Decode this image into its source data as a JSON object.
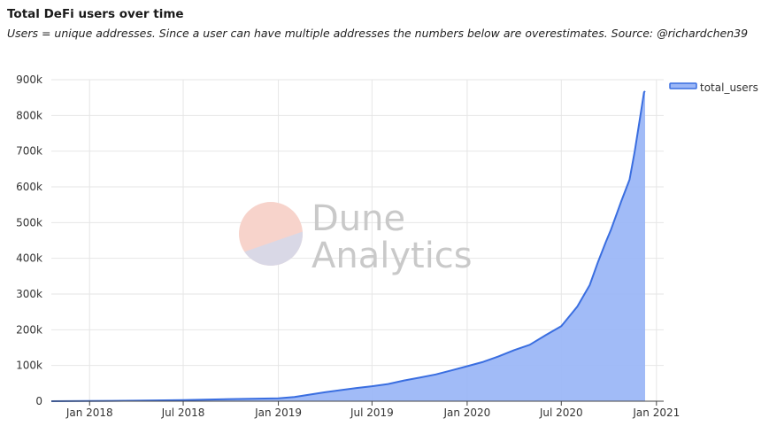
{
  "header": {
    "title": "Total DeFi users over time",
    "subtitle": "Users = unique addresses. Since a user can have multiple addresses the numbers below are overestimates. Source: @richardchen39"
  },
  "watermark": {
    "line1": "Dune",
    "line2": "Analytics"
  },
  "colors": {
    "line": "#3a6ee0",
    "fill": "#9cb7f7",
    "grid": "#e6e6e6",
    "watermark_top": "#f7d3cb",
    "watermark_bottom": "#d9d8e6"
  },
  "chart_data": {
    "type": "area",
    "title": "",
    "xlabel": "",
    "ylabel": "",
    "grid": true,
    "legend_position": "top-right",
    "xlim": [
      "2017-10-19",
      "2021-01-15"
    ],
    "ylim": [
      0,
      900000
    ],
    "y_ticks": [
      {
        "value": 0,
        "label": "0"
      },
      {
        "value": 100000,
        "label": "100k"
      },
      {
        "value": 200000,
        "label": "200k"
      },
      {
        "value": 300000,
        "label": "300k"
      },
      {
        "value": 400000,
        "label": "400k"
      },
      {
        "value": 500000,
        "label": "500k"
      },
      {
        "value": 600000,
        "label": "600k"
      },
      {
        "value": 700000,
        "label": "700k"
      },
      {
        "value": 800000,
        "label": "800k"
      },
      {
        "value": 900000,
        "label": "900k"
      }
    ],
    "x_ticks": [
      {
        "value": "2018-01-01",
        "label": "Jan 2018"
      },
      {
        "value": "2018-07-01",
        "label": "Jul 2018"
      },
      {
        "value": "2019-01-01",
        "label": "Jan 2019"
      },
      {
        "value": "2019-07-01",
        "label": "Jul 2019"
      },
      {
        "value": "2020-01-01",
        "label": "Jan 2020"
      },
      {
        "value": "2020-07-01",
        "label": "Jul 2020"
      },
      {
        "value": "2021-01-01",
        "label": "Jan 2021"
      }
    ],
    "series": [
      {
        "name": "total_users",
        "points": [
          [
            "2017-10-19",
            0
          ],
          [
            "2018-01-01",
            500
          ],
          [
            "2018-04-01",
            1500
          ],
          [
            "2018-07-01",
            3000
          ],
          [
            "2018-10-01",
            6000
          ],
          [
            "2019-01-01",
            8000
          ],
          [
            "2019-02-01",
            12000
          ],
          [
            "2019-04-01",
            25000
          ],
          [
            "2019-06-01",
            37000
          ],
          [
            "2019-07-01",
            42000
          ],
          [
            "2019-08-01",
            48000
          ],
          [
            "2019-09-01",
            58000
          ],
          [
            "2019-10-01",
            66000
          ],
          [
            "2019-11-01",
            75000
          ],
          [
            "2019-12-01",
            86000
          ],
          [
            "2020-01-01",
            98000
          ],
          [
            "2020-02-01",
            110000
          ],
          [
            "2020-03-01",
            125000
          ],
          [
            "2020-04-01",
            143000
          ],
          [
            "2020-05-01",
            158000
          ],
          [
            "2020-06-01",
            185000
          ],
          [
            "2020-07-01",
            210000
          ],
          [
            "2020-08-01",
            265000
          ],
          [
            "2020-08-25",
            325000
          ],
          [
            "2020-09-10",
            390000
          ],
          [
            "2020-09-25",
            445000
          ],
          [
            "2020-10-05",
            480000
          ],
          [
            "2020-10-25",
            560000
          ],
          [
            "2020-11-10",
            620000
          ],
          [
            "2020-11-20",
            700000
          ],
          [
            "2020-12-01",
            800000
          ],
          [
            "2020-12-08",
            865000
          ],
          [
            "2020-12-10",
            868000
          ]
        ]
      }
    ]
  }
}
